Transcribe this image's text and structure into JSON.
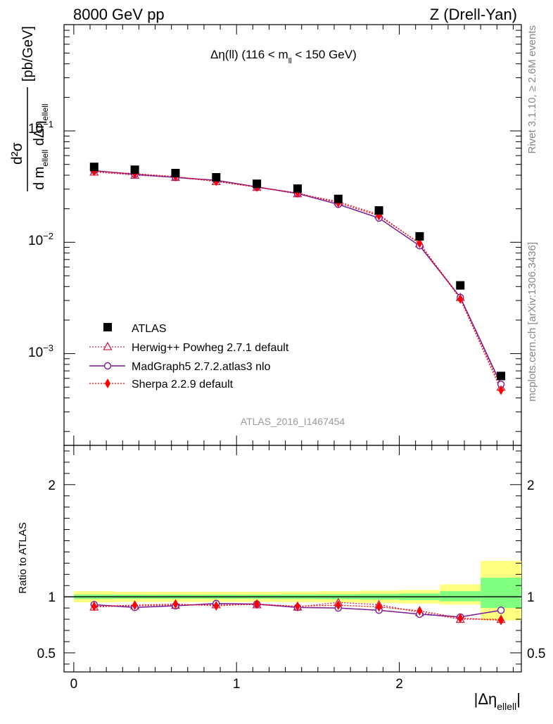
{
  "header": {
    "left": "8000 GeV pp",
    "right": "Z (Drell-Yan)"
  },
  "side_labels": {
    "rivet": "Rivet 3.1.10, ≥ 2.6M events",
    "mcplots": "mcplots.cern.ch [arXiv:1306.3436]"
  },
  "watermark": "ATLAS_2016_I1467454",
  "plot_title": {
    "main": "Δη(ll) (116 < m",
    "sub": "ll",
    "tail": " < 150 GeV)"
  },
  "ylabel_top": {
    "numer": "d²σ",
    "denom_a": "d m",
    "denom_sub_a": "ellell",
    "denom_b": " dΔη",
    "denom_sub_b": "ellell",
    "units": "[pb/GeV]"
  },
  "ylabel_bottom": "Ratio to ATLAS",
  "xlabel": {
    "main": "|Δη",
    "sub": "ellell",
    "tail": "|"
  },
  "colors": {
    "atlas": "#000000",
    "herwig": "#c8284b",
    "madgraph": "#7a1a96",
    "sherpa": "#ff0000",
    "band_outer": "#ffff80",
    "band_inner": "#80ff80"
  },
  "chart_data": [
    {
      "type": "scatter",
      "panel": "main",
      "title": "Δη(ll) (116 < m_ll < 150 GeV)",
      "xlabel": "|Δη_ellell|",
      "ylabel": "d²σ / d m_ellell dΔη_ellell [pb/GeV]",
      "y_scale": "log",
      "xlim": [
        -0.06,
        2.75
      ],
      "ylim": [
        0.00015,
        0.9
      ],
      "y_ticks": [
        "10⁻³",
        "10⁻²",
        "10⁻¹"
      ],
      "x": [
        0.125,
        0.375,
        0.625,
        0.875,
        1.125,
        1.375,
        1.625,
        1.875,
        2.125,
        2.375,
        2.625
      ],
      "legend_position": "lower-left",
      "series": [
        {
          "name": "ATLAS",
          "marker": "square",
          "values": [
            0.0475,
            0.0448,
            0.0418,
            0.0383,
            0.0335,
            0.0303,
            0.0245,
            0.0193,
            0.0113,
            0.0041,
            0.00063
          ]
        },
        {
          "name": "Herwig++ Powheg 2.7.1 default",
          "marker": "open-triangle",
          "line": "dotted",
          "values": [
            0.0428,
            0.0401,
            0.0383,
            0.0352,
            0.0312,
            0.0273,
            0.0232,
            0.0177,
            0.0097,
            0.0032,
            0.0005
          ]
        },
        {
          "name": "MadGraph5 2.7.2.atlas3 nlo",
          "marker": "open-circle",
          "line": "solid",
          "values": [
            0.044,
            0.0407,
            0.0382,
            0.036,
            0.0314,
            0.0274,
            0.0219,
            0.0165,
            0.0093,
            0.0032,
            0.00053
          ]
        },
        {
          "name": "Sherpa 2.2.9 default",
          "marker": "diamond",
          "line": "dotted",
          "values": [
            0.0435,
            0.0413,
            0.0389,
            0.0353,
            0.0313,
            0.0277,
            0.0226,
            0.0173,
            0.0098,
            0.0031,
            0.00047
          ]
        }
      ]
    },
    {
      "type": "scatter",
      "panel": "ratio",
      "ylabel": "Ratio to ATLAS",
      "xlabel": "|Δη_ellell|",
      "xlim": [
        -0.06,
        2.75
      ],
      "ylim": [
        0.33,
        2.35
      ],
      "y_ticks": [
        0.5,
        1,
        2
      ],
      "x_ticks": [
        0,
        1,
        2
      ],
      "bins": [
        [
          0,
          0.25
        ],
        [
          0.25,
          0.5
        ],
        [
          0.5,
          0.75
        ],
        [
          0.75,
          1.0
        ],
        [
          1.0,
          1.25
        ],
        [
          1.25,
          1.5
        ],
        [
          1.5,
          1.75
        ],
        [
          1.75,
          2.0
        ],
        [
          2.0,
          2.25
        ],
        [
          2.25,
          2.5
        ],
        [
          2.5,
          2.75
        ]
      ],
      "band_outer": [
        [
          0.95,
          1.05
        ],
        [
          0.955,
          1.045
        ],
        [
          0.955,
          1.045
        ],
        [
          0.955,
          1.045
        ],
        [
          0.955,
          1.045
        ],
        [
          0.953,
          1.047
        ],
        [
          0.95,
          1.05
        ],
        [
          0.945,
          1.055
        ],
        [
          0.94,
          1.06
        ],
        [
          0.93,
          1.11
        ],
        [
          0.79,
          1.32
        ]
      ],
      "band_inner": [
        [
          0.98,
          1.02
        ],
        [
          0.982,
          1.018
        ],
        [
          0.982,
          1.018
        ],
        [
          0.982,
          1.018
        ],
        [
          0.982,
          1.018
        ],
        [
          0.98,
          1.02
        ],
        [
          0.978,
          1.022
        ],
        [
          0.975,
          1.025
        ],
        [
          0.97,
          1.03
        ],
        [
          0.96,
          1.05
        ],
        [
          0.9,
          1.17
        ]
      ],
      "x": [
        0.125,
        0.375,
        0.625,
        0.875,
        1.125,
        1.375,
        1.625,
        1.875,
        2.125,
        2.375,
        2.625
      ],
      "series": [
        {
          "name": "Herwig++ Powheg 2.7.1 default",
          "values": [
            0.91,
            0.92,
            0.925,
            0.93,
            0.93,
            0.91,
            0.95,
            0.93,
            0.86,
            0.8,
            0.8
          ]
        },
        {
          "name": "MadGraph5 2.7.2.atlas3 nlo",
          "values": [
            0.93,
            0.905,
            0.92,
            0.94,
            0.935,
            0.905,
            0.9,
            0.88,
            0.845,
            0.82,
            0.88
          ]
        },
        {
          "name": "Sherpa 2.2.9 default",
          "values": [
            0.915,
            0.925,
            0.935,
            0.92,
            0.935,
            0.915,
            0.925,
            0.91,
            0.875,
            0.81,
            0.79
          ]
        }
      ]
    }
  ]
}
